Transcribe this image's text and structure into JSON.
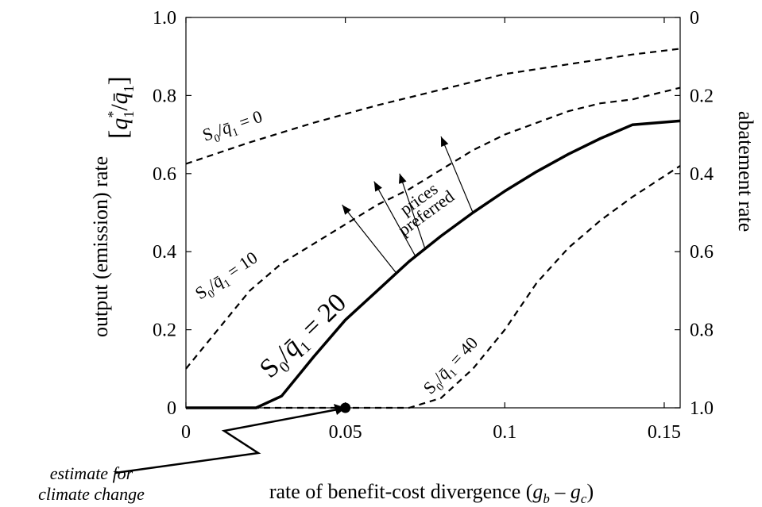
{
  "chart_data": {
    "type": "line",
    "xlabel": "rate of benefit-cost divergence (g_b − g_c)",
    "xlabel_parts": {
      "main": "rate of benefit-cost divergence (",
      "g1": "g",
      "s1": "b",
      "mid": " – ",
      "g2": "g",
      "s2": "c",
      "end": ")"
    },
    "ylabel": "output (emission) rate",
    "ylabel_formula": "[q₁*/q̄₁]",
    "y2label": "abatement rate",
    "xlim": [
      0,
      0.155
    ],
    "ylim": [
      0,
      1.0
    ],
    "x_ticks": [
      0,
      0.05,
      0.1,
      0.15
    ],
    "x_tick_labels": [
      "0",
      "0.05",
      "0.1",
      "0.15"
    ],
    "y_ticks": [
      0,
      0.2,
      0.4,
      0.6,
      0.8,
      1.0
    ],
    "y_tick_labels": [
      "0",
      "0.2",
      "0.4",
      "0.6",
      "0.8",
      "1.0"
    ],
    "y2_ticks": [
      0,
      0.2,
      0.4,
      0.6,
      0.8,
      1.0
    ],
    "y2_tick_labels": [
      "1.0",
      "0.8",
      "0.6",
      "0.4",
      "0.2",
      "0"
    ],
    "series": [
      {
        "key": "s0",
        "style": "dashed",
        "label": "S₀/q̄₁ = 0",
        "x": [
          0,
          0.02,
          0.04,
          0.06,
          0.08,
          0.1,
          0.12,
          0.14,
          0.155
        ],
        "y": [
          0.625,
          0.68,
          0.73,
          0.775,
          0.815,
          0.855,
          0.88,
          0.905,
          0.92
        ]
      },
      {
        "key": "s10",
        "style": "dashed",
        "label": "S₀/q̄₁ = 10",
        "x": [
          0,
          0.01,
          0.02,
          0.03,
          0.04,
          0.05,
          0.06,
          0.07,
          0.08,
          0.09,
          0.1,
          0.11,
          0.12,
          0.13,
          0.14,
          0.155
        ],
        "y": [
          0.1,
          0.2,
          0.3,
          0.37,
          0.42,
          0.47,
          0.52,
          0.56,
          0.61,
          0.66,
          0.7,
          0.73,
          0.76,
          0.78,
          0.79,
          0.82
        ]
      },
      {
        "key": "s20",
        "style": "solid",
        "label": "S₀/q̄₁ = 20",
        "x": [
          0,
          0.022,
          0.03,
          0.04,
          0.05,
          0.06,
          0.07,
          0.08,
          0.09,
          0.1,
          0.11,
          0.12,
          0.13,
          0.14,
          0.155
        ],
        "y": [
          0,
          0,
          0.03,
          0.13,
          0.225,
          0.3,
          0.375,
          0.44,
          0.5,
          0.555,
          0.605,
          0.65,
          0.69,
          0.725,
          0.735
        ]
      },
      {
        "key": "s40",
        "style": "dashed",
        "label": "S₀/q̄₁ = 40",
        "x": [
          0,
          0.07,
          0.08,
          0.09,
          0.1,
          0.11,
          0.12,
          0.13,
          0.14,
          0.155
        ],
        "y": [
          0,
          0,
          0.025,
          0.1,
          0.2,
          0.32,
          0.41,
          0.48,
          0.54,
          0.62
        ]
      }
    ],
    "marker": {
      "x": 0.05,
      "y": 0
    },
    "annotations": {
      "estimate_line1": "estimate for",
      "estimate_line2": "climate change",
      "prices_line1": "prices",
      "prices_line2": "preferred"
    }
  }
}
